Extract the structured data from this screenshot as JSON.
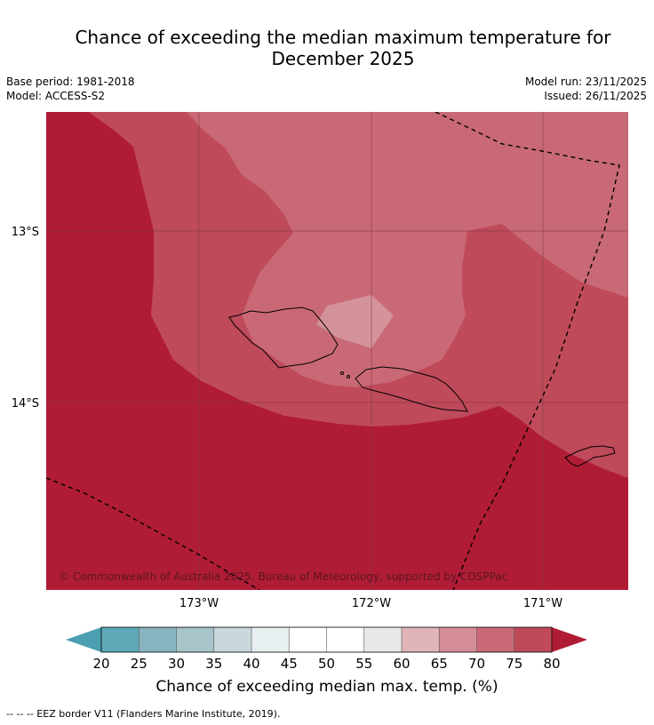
{
  "title_line1": "Chance of exceeding the median maximum temperature for",
  "title_line2": "December 2025",
  "base_period": "Base period: 1981-2018",
  "model": "Model: ACCESS-S2",
  "model_run": "Model run: 23/11/2025",
  "issued": "Issued: 26/11/2025",
  "map": {
    "lat_labels": [
      "13°S",
      "14°S"
    ],
    "lon_labels": [
      "173°W",
      "172°W",
      "171°W"
    ],
    "copyright": "© Commonwealth of Australia 2025, Bureau of Meteorology, supported by COSPPac",
    "regions": [
      {
        "level": "≥80",
        "color": "#b01c36"
      },
      {
        "level": "75-80",
        "color": "#bf4a5a"
      },
      {
        "level": "70-75",
        "color": "#c96975"
      },
      {
        "level": "65-70",
        "color": "#d4929a"
      }
    ]
  },
  "colorbar": {
    "ticks": [
      "20",
      "25",
      "30",
      "35",
      "40",
      "45",
      "50",
      "55",
      "60",
      "65",
      "70",
      "75",
      "80"
    ],
    "colors": [
      "#5fa9b9",
      "#88b3c0",
      "#a6c4c9",
      "#c8d8dc",
      "#e8eff1",
      "#ffffff",
      "#ffffff",
      "#e8e8e8",
      "#e0b5b9",
      "#d48d96",
      "#c96975",
      "#bf4a5a"
    ],
    "under_color": "#4b9fb0",
    "over_color": "#b01c36",
    "label": "Chance of exceeding median max. temp. (%)"
  },
  "footer": "--  --  -- EEZ border V11 (Flanders Marine Institute, 2019)."
}
